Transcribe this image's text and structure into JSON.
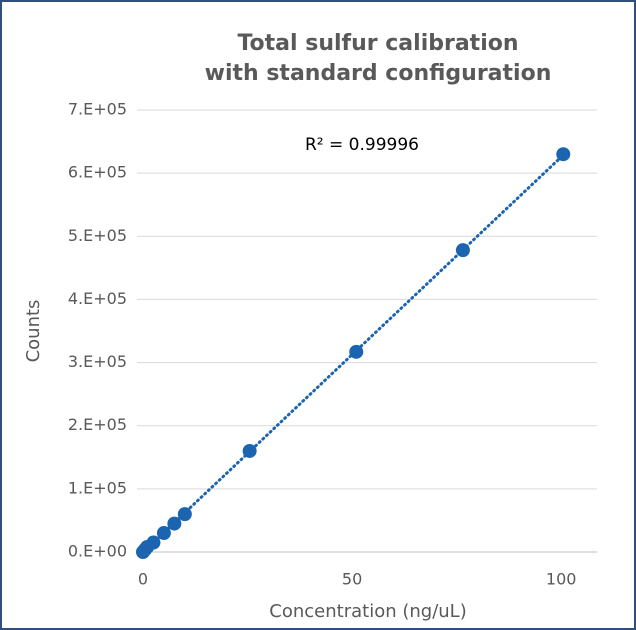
{
  "chart_data": {
    "type": "scatter",
    "title": [
      "Total sulfur calibration",
      "with standard configuration"
    ],
    "x_label": "Concentration (ng/uL)",
    "y_label": "Counts",
    "annotation": "R² = 0.99996",
    "color": "#1b64b0",
    "x": [
      0,
      0.5,
      1,
      2.5,
      5,
      7.5,
      10,
      25.5,
      51,
      76.5,
      100.5
    ],
    "values": [
      0,
      4000,
      8000,
      15000,
      30000,
      45000,
      60000,
      160000,
      317000,
      478000,
      630000
    ],
    "xlim": [
      0,
      110
    ],
    "xticks": [
      0,
      50,
      100
    ],
    "ylim": [
      0,
      700000
    ],
    "yticks": [
      {
        "value": 0,
        "label": "0.E+00"
      },
      {
        "value": 100000,
        "label": "1.E+05"
      },
      {
        "value": 200000,
        "label": "2.E+05"
      },
      {
        "value": 300000,
        "label": "3.E+05"
      },
      {
        "value": 400000,
        "label": "4.E+05"
      },
      {
        "value": 500000,
        "label": "5.E+05"
      },
      {
        "value": 600000,
        "label": "6.E+05"
      },
      {
        "value": 700000,
        "label": "7.E+05"
      }
    ],
    "grid": true,
    "trendline": true
  }
}
